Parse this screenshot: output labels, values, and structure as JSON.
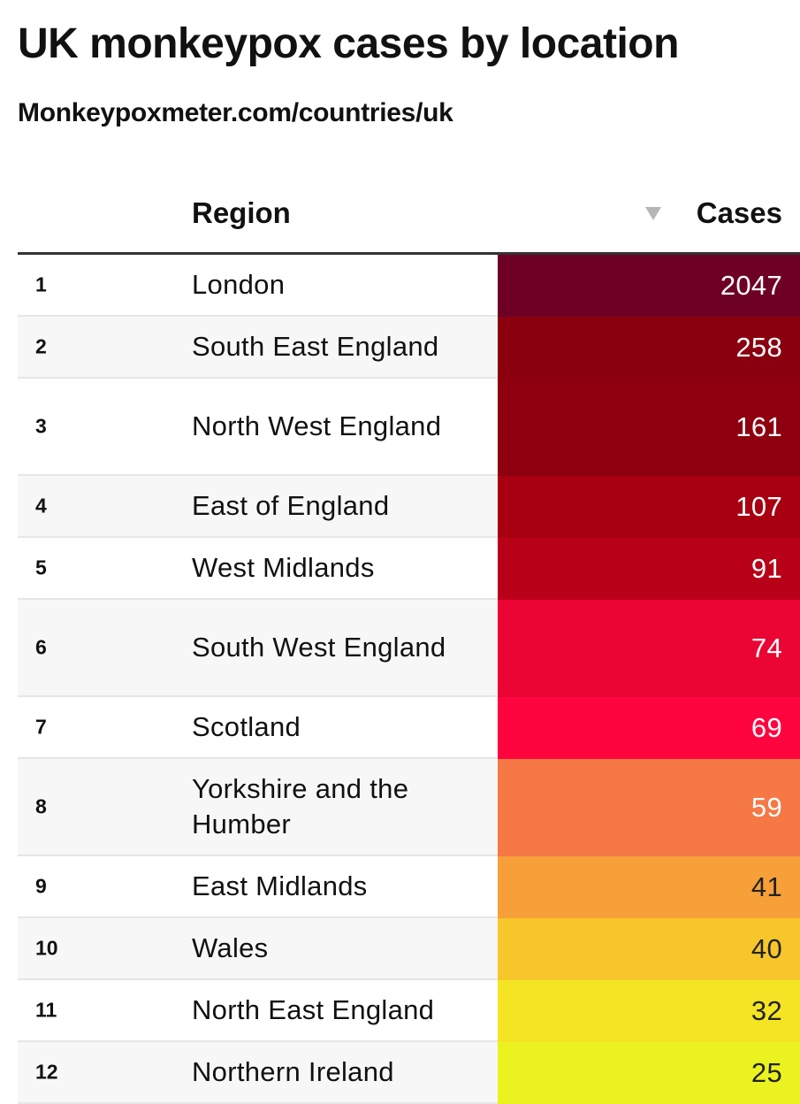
{
  "header": {
    "title": "UK monkeypox cases by location",
    "subtitle": "Monkeypoxmeter.com/countries/uk"
  },
  "table": {
    "columns": {
      "region": "Region",
      "cases": "Cases"
    },
    "sort_icon": "sort-descending-icon"
  },
  "chart_data": {
    "type": "table",
    "title": "UK monkeypox cases by location",
    "subtitle": "Monkeypoxmeter.com/countries/uk",
    "columns": [
      "",
      "Region",
      "Cases"
    ],
    "rows": [
      {
        "rank": "1",
        "region": "London",
        "cases": 2047,
        "color": "#6e0026",
        "text_color": "#ffffff"
      },
      {
        "rank": "2",
        "region": "South East England",
        "cases": 258,
        "color": "#8a000f",
        "text_color": "#ffffff"
      },
      {
        "rank": "3",
        "region": "North West England",
        "cases": 161,
        "color": "#8e0010",
        "text_color": "#ffffff"
      },
      {
        "rank": "4",
        "region": "East of England",
        "cases": 107,
        "color": "#a80010",
        "text_color": "#ffffff"
      },
      {
        "rank": "5",
        "region": "West Midlands",
        "cases": 91,
        "color": "#b80018",
        "text_color": "#ffffff"
      },
      {
        "rank": "6",
        "region": "South West England",
        "cases": 74,
        "color": "#eb0535",
        "text_color": "#ffffff"
      },
      {
        "rank": "7",
        "region": "Scotland",
        "cases": 69,
        "color": "#ff0540",
        "text_color": "#ffffff"
      },
      {
        "rank": "8",
        "region": "Yorkshire and the Humber",
        "cases": 59,
        "color": "#f57845",
        "text_color": "#ffffff"
      },
      {
        "rank": "9",
        "region": "East Midlands",
        "cases": 41,
        "color": "#f7a03a",
        "text_color": "#222222"
      },
      {
        "rank": "10",
        "region": "Wales",
        "cases": 40,
        "color": "#f7c62b",
        "text_color": "#222222"
      },
      {
        "rank": "11",
        "region": "North East England",
        "cases": 32,
        "color": "#f4e423",
        "text_color": "#222222"
      },
      {
        "rank": "12",
        "region": "Northern Ireland",
        "cases": 25,
        "color": "#eaf320",
        "text_color": "#222222"
      }
    ]
  }
}
